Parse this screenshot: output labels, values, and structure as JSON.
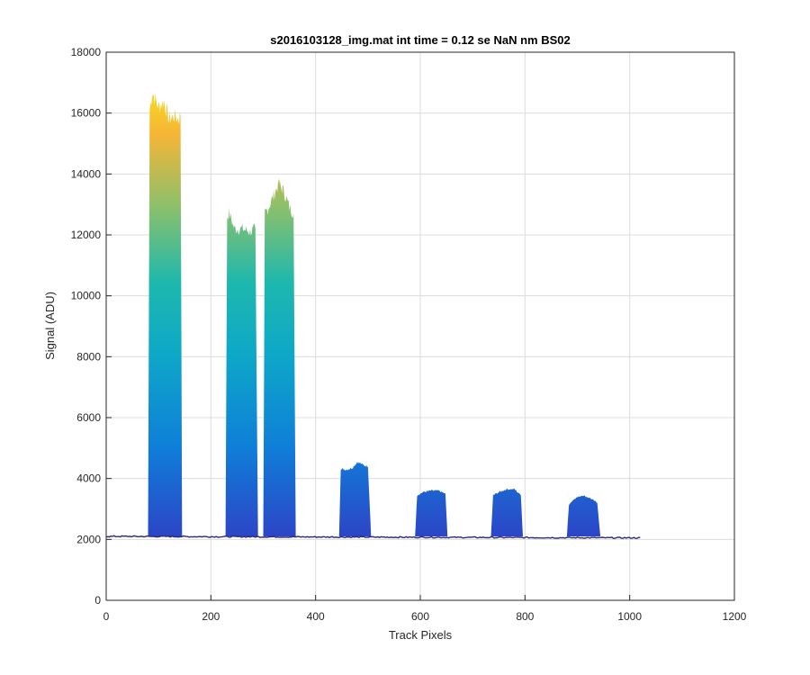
{
  "chart_data": {
    "type": "area",
    "title": "s2016103128_img.mat int time = 0.12 se  NaN nm BS02",
    "xlabel": "Track Pixels",
    "ylabel": "Signal (ADU)",
    "xlim": [
      0,
      1200
    ],
    "ylim": [
      0,
      18000
    ],
    "xticks": [
      0,
      200,
      400,
      600,
      800,
      1000,
      1200
    ],
    "yticks": [
      0,
      2000,
      4000,
      6000,
      8000,
      10000,
      12000,
      14000,
      16000,
      18000
    ],
    "grid": true,
    "colormap": "parula",
    "colors": {
      "low": "#352a87",
      "mid": "#0f7fd8",
      "teal": "#1eb8ae",
      "green": "#8dc06a",
      "orange": "#f5b537",
      "high": "#f9fb0e",
      "baseline": "#2a2a7a"
    },
    "baseline": {
      "x": [
        0,
        1022
      ],
      "y": 2100
    },
    "peaks": [
      {
        "x_start": 80,
        "x_end": 145,
        "top": [
          [
            80,
            2100
          ],
          [
            83,
            16100
          ],
          [
            88,
            16700
          ],
          [
            100,
            16200
          ],
          [
            110,
            16400
          ],
          [
            120,
            15800
          ],
          [
            130,
            15900
          ],
          [
            138,
            15800
          ],
          [
            142,
            15900
          ],
          [
            145,
            2100
          ]
        ]
      },
      {
        "x_start": 228,
        "x_end": 290,
        "top": [
          [
            228,
            2100
          ],
          [
            231,
            12600
          ],
          [
            235,
            12700
          ],
          [
            245,
            12200
          ],
          [
            260,
            12200
          ],
          [
            275,
            12100
          ],
          [
            285,
            12200
          ],
          [
            290,
            2100
          ]
        ]
      },
      {
        "x_start": 300,
        "x_end": 362,
        "top": [
          [
            300,
            2100
          ],
          [
            303,
            12700
          ],
          [
            310,
            12900
          ],
          [
            320,
            13300
          ],
          [
            330,
            13700
          ],
          [
            340,
            13400
          ],
          [
            350,
            12900
          ],
          [
            358,
            12700
          ],
          [
            362,
            2100
          ]
        ]
      },
      {
        "x_start": 445,
        "x_end": 506,
        "top": [
          [
            445,
            2100
          ],
          [
            448,
            4300
          ],
          [
            460,
            4300
          ],
          [
            470,
            4350
          ],
          [
            480,
            4550
          ],
          [
            490,
            4450
          ],
          [
            500,
            4400
          ],
          [
            506,
            2100
          ]
        ]
      },
      {
        "x_start": 590,
        "x_end": 652,
        "top": [
          [
            590,
            2100
          ],
          [
            594,
            3450
          ],
          [
            605,
            3550
          ],
          [
            620,
            3600
          ],
          [
            635,
            3600
          ],
          [
            648,
            3500
          ],
          [
            652,
            2100
          ]
        ]
      },
      {
        "x_start": 735,
        "x_end": 796,
        "top": [
          [
            735,
            2100
          ],
          [
            739,
            3450
          ],
          [
            750,
            3550
          ],
          [
            765,
            3650
          ],
          [
            780,
            3650
          ],
          [
            792,
            3450
          ],
          [
            796,
            2100
          ]
        ]
      },
      {
        "x_start": 880,
        "x_end": 944,
        "top": [
          [
            880,
            2100
          ],
          [
            884,
            3150
          ],
          [
            895,
            3350
          ],
          [
            910,
            3450
          ],
          [
            925,
            3350
          ],
          [
            938,
            3200
          ],
          [
            944,
            2100
          ]
        ]
      }
    ]
  }
}
